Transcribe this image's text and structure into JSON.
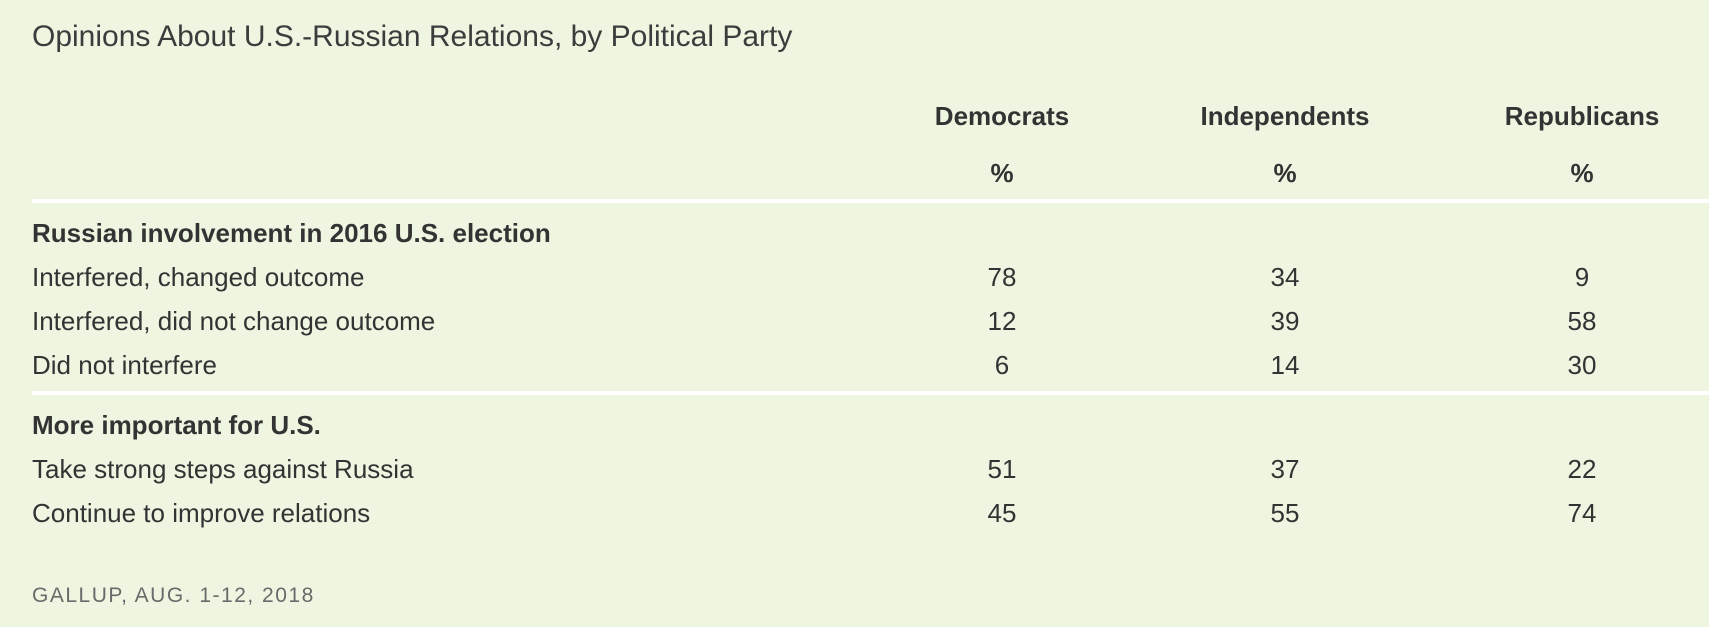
{
  "title": "Opinions About U.S.-Russian Relations, by Political Party",
  "columns": [
    {
      "name": "Democrats",
      "unit": "%"
    },
    {
      "name": "Independents",
      "unit": "%"
    },
    {
      "name": "Republicans",
      "unit": "%"
    }
  ],
  "sections": [
    {
      "label": "Russian involvement in 2016 U.S. election",
      "rows": [
        {
          "label": "Interfered, changed outcome",
          "values": [
            "78",
            "34",
            "9"
          ]
        },
        {
          "label": "Interfered, did not change outcome",
          "values": [
            "12",
            "39",
            "58"
          ]
        },
        {
          "label": "Did not interfere",
          "values": [
            "6",
            "14",
            "30"
          ]
        }
      ]
    },
    {
      "label": "More important for U.S.",
      "rows": [
        {
          "label": "Take strong steps against Russia",
          "values": [
            "51",
            "37",
            "22"
          ]
        },
        {
          "label": "Continue to improve relations",
          "values": [
            "45",
            "55",
            "74"
          ]
        }
      ]
    }
  ],
  "source": "GALLUP, AUG. 1-12, 2018"
}
